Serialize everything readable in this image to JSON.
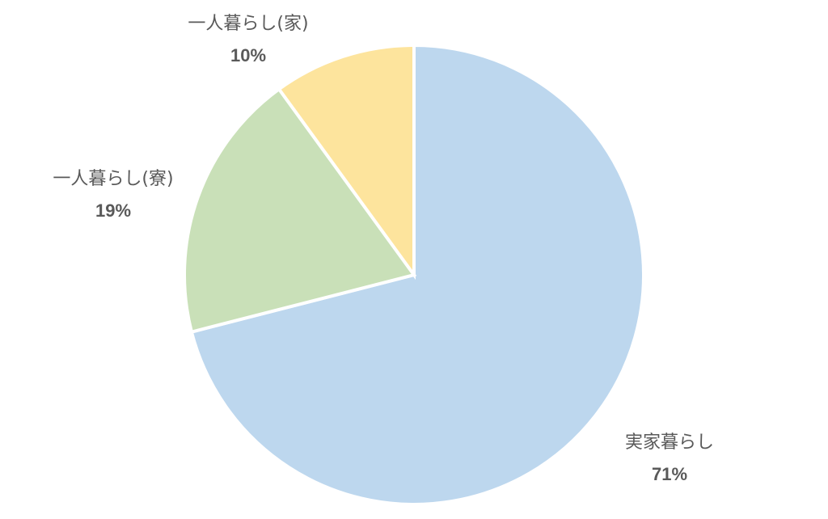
{
  "chart_data": {
    "type": "pie",
    "categories": [
      "実家暮らし",
      "一人暮らし(寮)",
      "一人暮らし(家)"
    ],
    "values": [
      71,
      19,
      10
    ],
    "value_labels": [
      "71%",
      "19%",
      "10%"
    ],
    "colors": [
      "#bdd7ee",
      "#c9e0b8",
      "#fde49d"
    ]
  }
}
